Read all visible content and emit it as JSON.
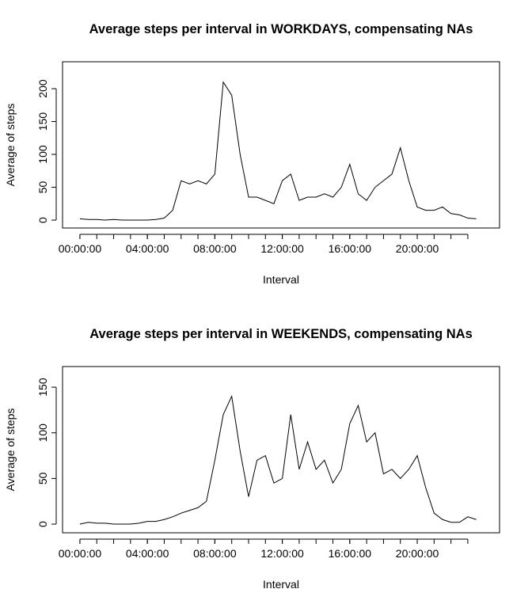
{
  "chart_data": [
    {
      "type": "line",
      "title": "Average steps per interval in WORKDAYS, compensating NAs",
      "x_label": "Interval",
      "y_label": "Average of steps",
      "x": [
        0,
        0.5,
        1,
        1.5,
        2,
        2.5,
        3,
        3.5,
        4,
        4.5,
        5,
        5.5,
        6,
        6.5,
        7,
        7.5,
        8,
        8.5,
        9,
        9.5,
        10,
        10.5,
        11,
        11.5,
        12,
        12.5,
        13,
        13.5,
        14,
        14.5,
        15,
        15.5,
        16,
        16.5,
        17,
        17.5,
        18,
        18.5,
        19,
        19.5,
        20,
        20.5,
        21,
        21.5,
        22,
        22.5,
        23,
        23.5
      ],
      "series": [
        {
          "name": "steps",
          "color": "#000000",
          "values": [
            2,
            1,
            1,
            0,
            1,
            0,
            0,
            0,
            0,
            1,
            3,
            15,
            60,
            55,
            60,
            55,
            70,
            210,
            190,
            100,
            35,
            35,
            30,
            25,
            60,
            70,
            30,
            35,
            35,
            40,
            35,
            50,
            85,
            40,
            30,
            50,
            60,
            70,
            110,
            60,
            20,
            15,
            15,
            20,
            10,
            8,
            3,
            2
          ]
        }
      ],
      "xlim": [
        -1.03,
        24.88
      ],
      "xticks": [
        {
          "value": 0,
          "label": "00:00:00"
        },
        {
          "value": 4,
          "label": "04:00:00"
        },
        {
          "value": 8,
          "label": "08:00:00"
        },
        {
          "value": 12,
          "label": "12:00:00"
        },
        {
          "value": 16,
          "label": "16:00:00"
        },
        {
          "value": 20,
          "label": "20:00:00"
        }
      ],
      "xminor_ticks": [
        0,
        1,
        2,
        3,
        4,
        5,
        6,
        7,
        8,
        9,
        10,
        11,
        12,
        13,
        14,
        15,
        16,
        17,
        18,
        19,
        20,
        21,
        22,
        23
      ],
      "ylim": [
        -12,
        241
      ],
      "yticks": [
        0,
        50,
        100,
        150,
        200
      ]
    },
    {
      "type": "line",
      "title": "Average steps per interval in WEEKENDS, compensating NAs",
      "x_label": "Interval",
      "y_label": "Average of steps",
      "x": [
        0,
        0.5,
        1,
        1.5,
        2,
        2.5,
        3,
        3.5,
        4,
        4.5,
        5,
        5.5,
        6,
        6.5,
        7,
        7.5,
        8,
        8.5,
        9,
        9.5,
        10,
        10.5,
        11,
        11.5,
        12,
        12.5,
        13,
        13.5,
        14,
        14.5,
        15,
        15.5,
        16,
        16.5,
        17,
        17.5,
        18,
        18.5,
        19,
        19.5,
        20,
        20.5,
        21,
        21.5,
        22,
        22.5,
        23,
        23.5
      ],
      "series": [
        {
          "name": "steps",
          "color": "#000000",
          "values": [
            0,
            2,
            1,
            1,
            0,
            0,
            0,
            1,
            3,
            3,
            5,
            8,
            12,
            15,
            18,
            25,
            70,
            120,
            140,
            80,
            30,
            70,
            75,
            45,
            50,
            120,
            60,
            90,
            60,
            70,
            45,
            60,
            110,
            130,
            90,
            100,
            55,
            60,
            50,
            60,
            75,
            40,
            12,
            5,
            2,
            2,
            8,
            5
          ]
        }
      ],
      "xlim": [
        -1.03,
        24.88
      ],
      "xticks": [
        {
          "value": 0,
          "label": "00:00:00"
        },
        {
          "value": 4,
          "label": "04:00:00"
        },
        {
          "value": 8,
          "label": "08:00:00"
        },
        {
          "value": 12,
          "label": "12:00:00"
        },
        {
          "value": 16,
          "label": "16:00:00"
        },
        {
          "value": 20,
          "label": "20:00:00"
        }
      ],
      "xminor_ticks": [
        0,
        1,
        2,
        3,
        4,
        5,
        6,
        7,
        8,
        9,
        10,
        11,
        12,
        13,
        14,
        15,
        16,
        17,
        18,
        19,
        20,
        21,
        22,
        23
      ],
      "ylim": [
        -9.5,
        172.6
      ],
      "yticks": [
        0,
        50,
        100,
        150
      ]
    }
  ]
}
